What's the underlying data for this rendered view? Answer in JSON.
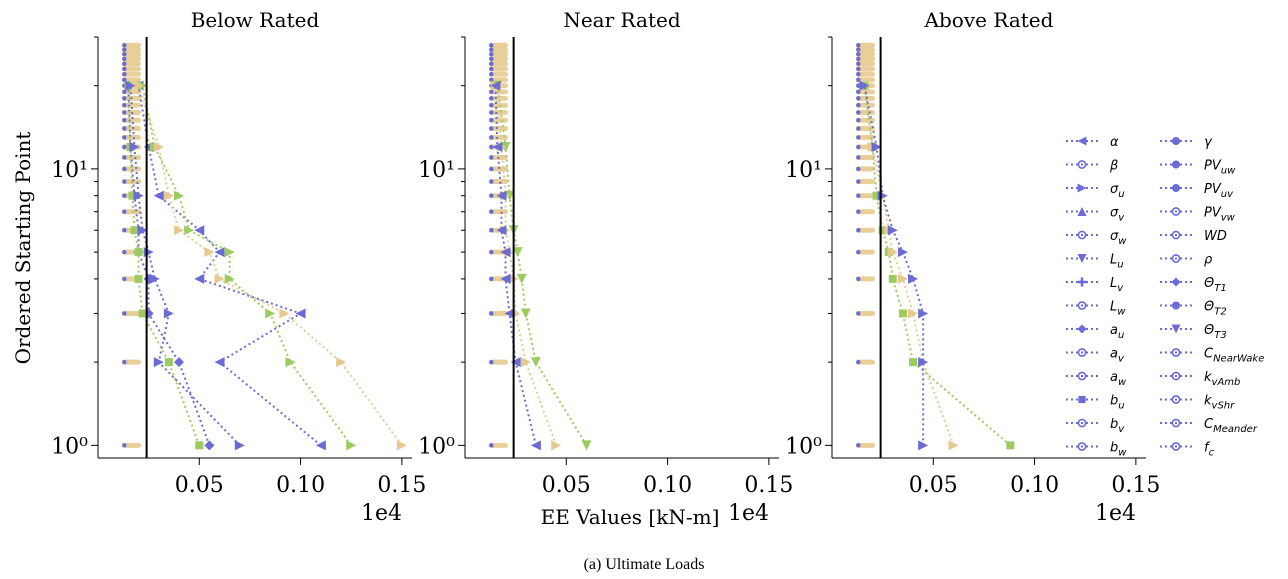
{
  "figure": {
    "caption": "(a)  Ultimate Loads",
    "xlabel": "EE Values [kN-m]",
    "ylabel": "Ordered Starting Point",
    "x_offset_text": "1e4",
    "colors": {
      "blue": "#6b6bd6",
      "green": "#9ccc5f",
      "tan": "#e6c98f",
      "vline": "#000000"
    }
  },
  "legend": {
    "column1": [
      "α",
      "β",
      "σ_u",
      "σ_v",
      "σ_w",
      "L_u",
      "L_v",
      "L_w",
      "a_u",
      "a_v",
      "a_w",
      "b_u",
      "b_v",
      "b_w"
    ],
    "column2": [
      "γ",
      "PV_uw",
      "PV_uv",
      "PV_vw",
      "WD",
      "ρ",
      "Θ_T1",
      "Θ_T2",
      "Θ_T3",
      "C_NearWake",
      "k_vAmb",
      "k_vShr",
      "C_Meander",
      "f_c"
    ],
    "markers1": [
      "tri-left",
      "circle-open",
      "tri-right",
      "tri-up",
      "circle-open",
      "tri-down",
      "plus",
      "circle-open",
      "diamond",
      "circle-open",
      "circle-open",
      "square",
      "circle-open",
      "circle-open"
    ],
    "markers2": [
      "hexagon",
      "star",
      "octagon",
      "circle-open",
      "circle-open",
      "circle-open",
      "diamond",
      "hexagon",
      "tri-down",
      "circle-open",
      "circle-open",
      "circle-open",
      "circle-open",
      "circle-open"
    ]
  },
  "chart_data": [
    {
      "type": "line",
      "title": "Below Rated",
      "xlabel": "",
      "ylabel": "Ordered Starting Point",
      "xscale": "linear",
      "yscale": "log",
      "xlim": [
        0.0,
        0.155
      ],
      "ylim": [
        0.9,
        30
      ],
      "xticks": [
        0.05,
        0.1,
        0.15
      ],
      "xtick_labels": [
        "0.05",
        "0.10",
        "0.15"
      ],
      "yticks": [
        1,
        10
      ],
      "ytick_labels": [
        "10⁰",
        "10¹"
      ],
      "offset_text": "1e4",
      "vline_x": 0.024,
      "series": [
        {
          "color": "#6b6bd6",
          "marker": "tri-left",
          "x": [
            0.11,
            0.06,
            0.1,
            0.05,
            0.06,
            0.05,
            0.03,
            0.025,
            0.02
          ],
          "y": [
            1,
            2,
            3,
            4,
            5,
            6,
            8,
            12,
            20
          ]
        },
        {
          "color": "#9ccc5f",
          "marker": "tri-right",
          "x": [
            0.125,
            0.095,
            0.085,
            0.065,
            0.065,
            0.045,
            0.04,
            0.028,
            0.022
          ],
          "y": [
            1,
            2,
            3,
            4,
            5,
            6,
            8,
            12,
            20
          ]
        },
        {
          "color": "#e6c98f",
          "marker": "tri-right",
          "x": [
            0.15,
            0.12,
            0.092,
            0.06,
            0.055,
            0.04,
            0.035,
            0.03,
            0.02
          ],
          "y": [
            1,
            2,
            3,
            4,
            5,
            6,
            8,
            12,
            20
          ]
        },
        {
          "color": "#6b6bd6",
          "marker": "diamond",
          "x": [
            0.055,
            0.04,
            0.025,
            0.025,
            0.02,
            0.02,
            0.018,
            0.016,
            0.015
          ],
          "y": [
            1,
            2,
            3,
            4,
            5,
            6,
            8,
            12,
            20
          ]
        },
        {
          "color": "#9ccc5f",
          "marker": "square",
          "x": [
            0.05,
            0.035,
            0.022,
            0.02,
            0.02,
            0.018,
            0.017,
            0.016,
            0.015
          ],
          "y": [
            1,
            2,
            3,
            4,
            5,
            6,
            8,
            12,
            20
          ]
        },
        {
          "color": "#6b6bd6",
          "marker": "tri-right",
          "x": [
            0.07,
            0.03,
            0.035,
            0.028,
            0.025,
            0.022,
            0.02,
            0.018,
            0.016
          ],
          "y": [
            1,
            2,
            3,
            4,
            5,
            6,
            8,
            12,
            20
          ]
        }
      ]
    },
    {
      "type": "line",
      "title": "Near Rated",
      "xlabel": "EE Values [kN-m]",
      "ylabel": "",
      "xscale": "linear",
      "yscale": "log",
      "xlim": [
        0.0,
        0.155
      ],
      "ylim": [
        0.9,
        30
      ],
      "xticks": [
        0.05,
        0.1,
        0.15
      ],
      "xtick_labels": [
        "0.05",
        "0.10",
        "0.15"
      ],
      "yticks": [
        1,
        10
      ],
      "ytick_labels": [
        "10⁰",
        "10¹"
      ],
      "offset_text": "1e4",
      "vline_x": 0.024,
      "series": [
        {
          "color": "#9ccc5f",
          "marker": "tri-down",
          "x": [
            0.06,
            0.035,
            0.03,
            0.028,
            0.026,
            0.024,
            0.022,
            0.02,
            0.016
          ],
          "y": [
            1,
            2,
            3,
            4,
            5,
            6,
            8,
            12,
            20
          ]
        },
        {
          "color": "#e6c98f",
          "marker": "tri-right",
          "x": [
            0.045,
            0.03,
            0.025,
            0.024,
            0.022,
            0.02,
            0.02,
            0.018,
            0.015
          ],
          "y": [
            1,
            2,
            3,
            4,
            5,
            6,
            8,
            12,
            20
          ]
        },
        {
          "color": "#6b6bd6",
          "marker": "tri-left",
          "x": [
            0.035,
            0.025,
            0.022,
            0.02,
            0.02,
            0.018,
            0.018,
            0.016,
            0.015
          ],
          "y": [
            1,
            2,
            3,
            4,
            5,
            6,
            8,
            12,
            20
          ]
        }
      ]
    },
    {
      "type": "line",
      "title": "Above Rated",
      "xlabel": "",
      "ylabel": "",
      "xscale": "linear",
      "yscale": "log",
      "xlim": [
        0.0,
        0.155
      ],
      "ylim": [
        0.9,
        30
      ],
      "xticks": [
        0.05,
        0.1,
        0.15
      ],
      "xtick_labels": [
        "0.05",
        "0.10",
        "0.15"
      ],
      "yticks": [
        1,
        10
      ],
      "ytick_labels": [
        "10⁰",
        "10¹"
      ],
      "offset_text": "1e4",
      "vline_x": 0.024,
      "series": [
        {
          "color": "#9ccc5f",
          "marker": "square",
          "x": [
            0.088,
            0.04,
            0.035,
            0.03,
            0.028,
            0.025,
            0.022,
            0.02,
            0.016
          ],
          "y": [
            1,
            2,
            3,
            4,
            5,
            6,
            8,
            12,
            20
          ]
        },
        {
          "color": "#e6c98f",
          "marker": "tri-right",
          "x": [
            0.06,
            0.045,
            0.04,
            0.035,
            0.03,
            0.028,
            0.025,
            0.02,
            0.016
          ],
          "y": [
            1,
            2,
            3,
            4,
            5,
            6,
            8,
            12,
            20
          ]
        },
        {
          "color": "#6b6bd6",
          "marker": "tri-right",
          "x": [
            0.045,
            0.045,
            0.045,
            0.04,
            0.035,
            0.03,
            0.025,
            0.022,
            0.016
          ],
          "y": [
            1,
            2,
            3,
            4,
            5,
            6,
            8,
            12,
            20
          ]
        }
      ]
    }
  ]
}
